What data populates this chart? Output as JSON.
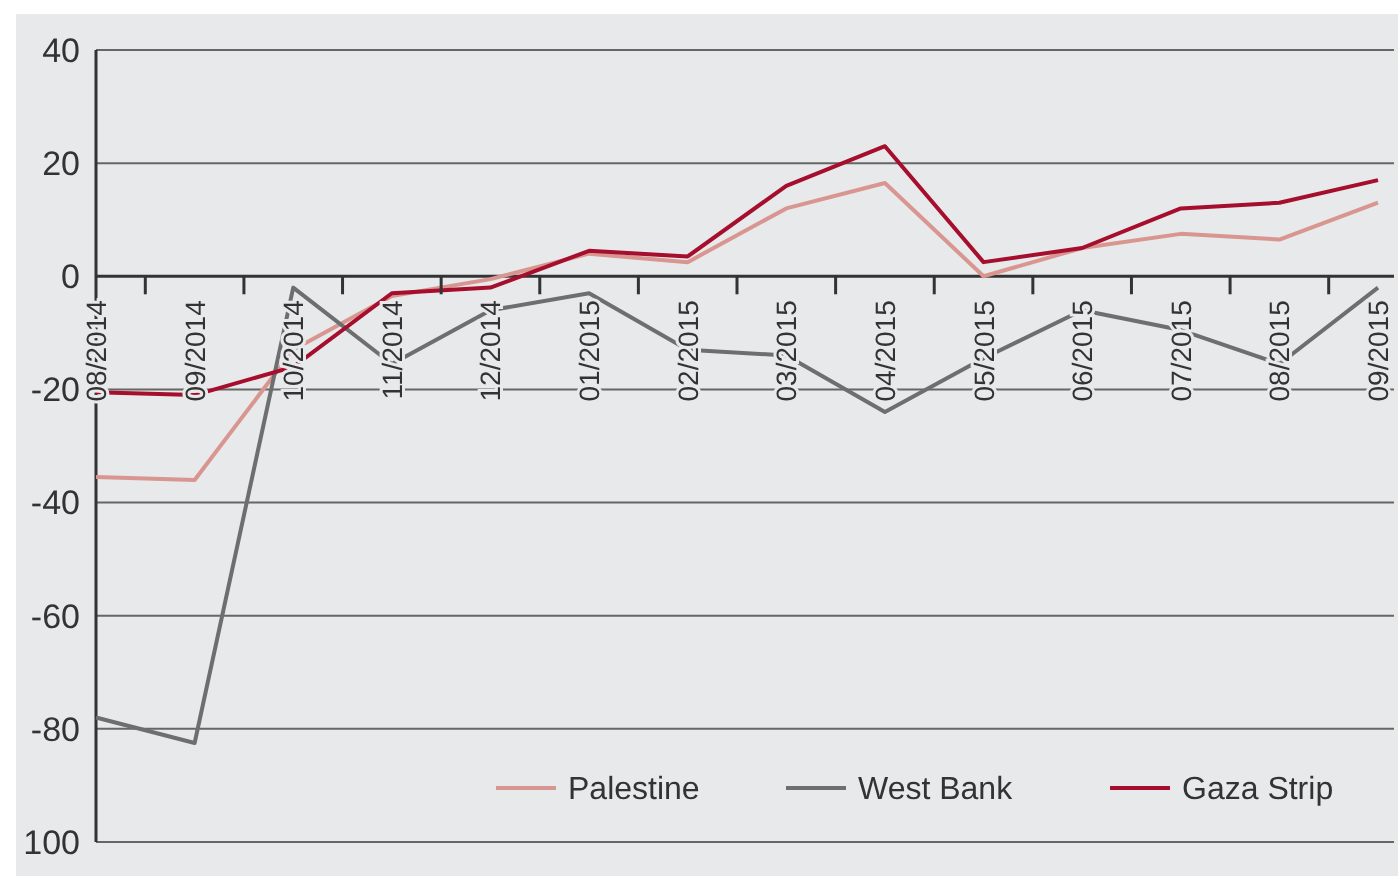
{
  "chart_data": {
    "type": "line",
    "categories": [
      "08/2014",
      "09/2014",
      "10/2014",
      "11/2014",
      "12/2014",
      "01/2015",
      "02/2015",
      "03/2015",
      "04/2015",
      "05/2015",
      "06/2015",
      "07/2015",
      "08/2015",
      "09/2015"
    ],
    "series": [
      {
        "name": "Palestine",
        "color": "#d9958f",
        "values": [
          -35.5,
          -36,
          -13,
          -3.5,
          -0.5,
          4,
          2.5,
          12,
          16.5,
          0,
          5,
          7.5,
          6.5,
          13
        ]
      },
      {
        "name": "West Bank",
        "color": "#6d6e70",
        "values": [
          -78,
          -82.5,
          -2,
          -15.5,
          -6,
          -3,
          -13,
          -14,
          -24,
          -14.5,
          -6,
          -9.5,
          -15.5,
          -2
        ]
      },
      {
        "name": "Gaza Strip",
        "color": "#a50e2d",
        "values": [
          -20.5,
          -21,
          -16,
          -3,
          -2,
          4.5,
          3.5,
          16,
          23,
          2.5,
          5,
          12,
          13,
          17
        ]
      }
    ],
    "ylim": [
      -100,
      40
    ],
    "yticks": [
      40,
      20,
      0,
      -20,
      -40,
      -60,
      -80,
      {
        "value": -100,
        "label": "100"
      }
    ],
    "grid": "y",
    "legend": "bottom right",
    "marker": "none",
    "line_style": "solid"
  }
}
